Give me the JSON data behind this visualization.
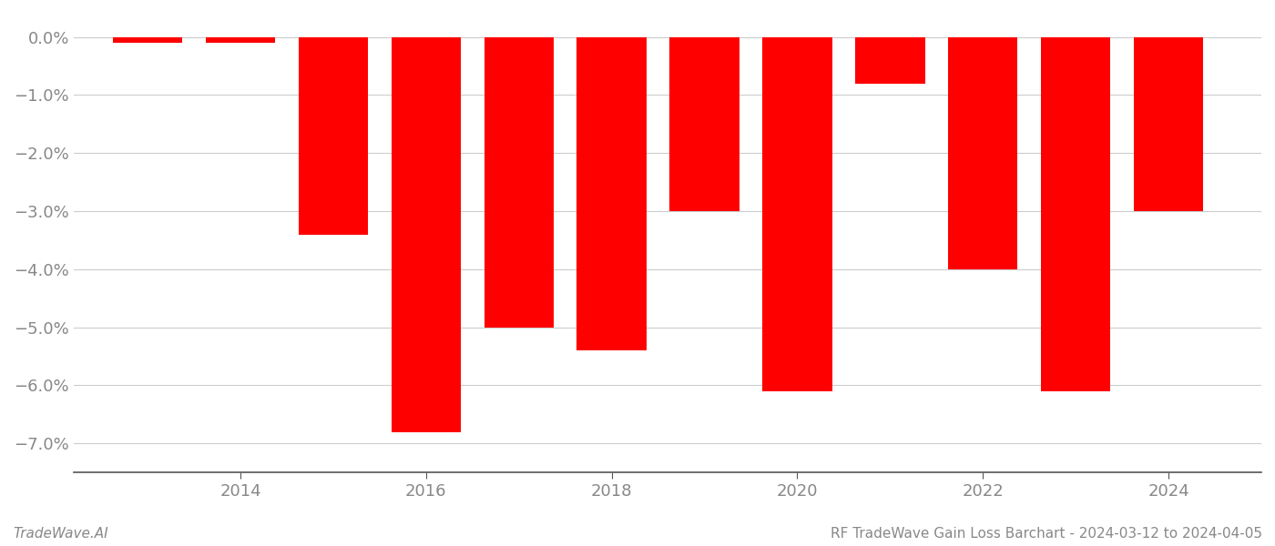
{
  "years": [
    2013,
    2014,
    2015,
    2016,
    2017,
    2018,
    2019,
    2020,
    2021,
    2022,
    2023,
    2024
  ],
  "values": [
    -0.001,
    -0.001,
    -0.034,
    -0.068,
    -0.05,
    -0.054,
    -0.03,
    -0.061,
    -0.008,
    -0.04,
    -0.061,
    -0.03
  ],
  "bar_color": "#ff0000",
  "ylim_min": -0.075,
  "ylim_max": 0.004,
  "yticks": [
    0.0,
    -0.01,
    -0.02,
    -0.03,
    -0.04,
    -0.05,
    -0.06,
    -0.07
  ],
  "xticks": [
    2014,
    2016,
    2018,
    2020,
    2022,
    2024
  ],
  "footer_left": "TradeWave.AI",
  "footer_right": "RF TradeWave Gain Loss Barchart - 2024-03-12 to 2024-04-05",
  "background_color": "#ffffff",
  "grid_color": "#cccccc",
  "tick_label_color": "#888888",
  "footer_color": "#888888",
  "bar_width": 0.75,
  "figure_width": 14.0,
  "figure_height": 6.0,
  "xlim_min": 2012.2,
  "xlim_max": 2025.0
}
